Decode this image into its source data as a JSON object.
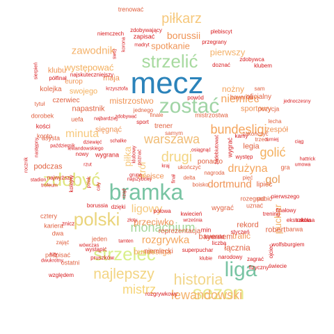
{
  "words": [
    {
      "text": "mecz",
      "color": "#2b83ba"
    },
    {
      "text": "bramka",
      "color": "#78c4a3"
    },
    {
      "text": "liga",
      "color": "#78c4a3"
    },
    {
      "text": "sezon",
      "color": "#e8e88e"
    },
    {
      "text": "zostać",
      "color": "#9fd4a4"
    },
    {
      "text": "strzelić",
      "color": "#a7da9f"
    },
    {
      "text": "strzelec",
      "color": "#d9ef8b"
    },
    {
      "text": "polski",
      "color": "#ead47b"
    },
    {
      "text": "zdobyć",
      "color": "#dfe57f"
    },
    {
      "text": "historia",
      "color": "#f2d68b"
    },
    {
      "text": "najlepszy",
      "color": "#f3d583"
    },
    {
      "text": "lewandowski",
      "color": "#f4b26a"
    },
    {
      "text": "piłkarz",
      "color": "#f6c87c"
    },
    {
      "text": "bundesligi",
      "color": "#f4a45b"
    },
    {
      "text": "warszawa",
      "color": "#f0bc75"
    },
    {
      "text": "monachium",
      "color": "#a6d79a"
    },
    {
      "text": "drugi",
      "color": "#f3d583"
    },
    {
      "text": "mistrz",
      "color": "#f6d579"
    },
    {
      "text": "gol",
      "color": "#e89c57"
    },
    {
      "text": "golić",
      "color": "#f3b05e"
    },
    {
      "text": "minuta",
      "color": "#f6c87c"
    },
    {
      "text": "dortmund",
      "color": "#ef9354"
    },
    {
      "text": "niemiec",
      "color": "#f4a45b"
    },
    {
      "text": "zawodnik",
      "color": "#f4b26a"
    },
    {
      "text": "pierwszy",
      "color": "#f4b26a"
    },
    {
      "text": "rozgrywka",
      "color": "#f4a45b"
    },
    {
      "text": "drużyna",
      "color": "#f4a45b"
    },
    {
      "text": "ligowy",
      "color": "#f6c87c"
    },
    {
      "text": "przeciwko",
      "color": "#ef9354"
    },
    {
      "text": "borussii",
      "color": "#ef9354"
    },
    {
      "text": "spotkanie",
      "color": "#ef9354"
    },
    {
      "text": "występować",
      "color": "#f3b05e"
    },
    {
      "text": "mistrzostwo",
      "color": "#ef9354"
    },
    {
      "text": "nożny",
      "color": "#f4a45b"
    },
    {
      "text": "sportowy",
      "color": "#ef9354"
    },
    {
      "text": "klubu",
      "color": "#ef9354"
    },
    {
      "text": "maja",
      "color": "#ef9354"
    },
    {
      "text": "europ",
      "color": "#ef9354"
    },
    {
      "text": "swojego",
      "color": "#f3b05e"
    },
    {
      "text": "czerwiec",
      "color": "#e0603f"
    },
    {
      "text": "napastnik",
      "color": "#e0603f"
    },
    {
      "text": "sięgnąć",
      "color": "#ef9354"
    },
    {
      "text": "zespół",
      "color": "#ef9354"
    },
    {
      "text": "miejsce",
      "color": "#ef9354"
    },
    {
      "text": "bundesliga",
      "color": "#f4a45b"
    },
    {
      "text": "puchar",
      "color": "#f4b26a"
    },
    {
      "text": "piłka",
      "color": "#f6c87c"
    },
    {
      "text": "król",
      "color": "#f6c87c"
    },
    {
      "text": "łącznia",
      "color": "#e0603f"
    },
    {
      "text": "trafić",
      "color": "#ef9354"
    },
    {
      "text": "rekord",
      "color": "#e0603f"
    },
    {
      "text": "robert",
      "color": "#e0603f"
    },
    {
      "text": "bayernem",
      "color": "#e0603f"
    },
    {
      "text": "niemiecki",
      "color": "#e0603f"
    },
    {
      "text": "podczas",
      "color": "#e0603f"
    },
    {
      "text": "lipiec",
      "color": "#e0603f"
    },
    {
      "text": "ponadto",
      "color": "#e0603f"
    },
    {
      "text": "legia",
      "color": "#e0603f"
    },
    {
      "text": "wygrać",
      "color": "#e0603f"
    },
    {
      "text": "rozegrać",
      "color": "#e0603f"
    },
    {
      "text": "pobić",
      "color": "#e0603f"
    },
    {
      "text": "uznać",
      "color": "#e0603f"
    },
    {
      "text": "barwa",
      "color": "#e0603f"
    },
    {
      "text": "jeden",
      "color": "#e0603f"
    },
    {
      "text": "reprezentacja",
      "color": "#e0603f"
    },
    {
      "text": "dwa",
      "color": "#e0603f"
    },
    {
      "text": "kariera",
      "color": "#e0603f"
    },
    {
      "text": "cztery",
      "color": "#e0603f"
    },
    {
      "text": "podpisać",
      "color": "#e0603f"
    },
    {
      "text": "ostatni",
      "color": "#e0603f"
    },
    {
      "text": "zająć",
      "color": "#e0603f"
    },
    {
      "text": "trener",
      "color": "#e0603f"
    },
    {
      "text": "oficjalny",
      "color": "#e0603f"
    },
    {
      "text": "bayernu",
      "color": "#e0603f"
    },
    {
      "text": "sam",
      "color": "#e0603f"
    },
    {
      "text": "pozycja",
      "color": "#e0603f"
    },
    {
      "text": "kolejka",
      "color": "#e0603f"
    },
    {
      "text": "dorobek",
      "color": "#e0603f"
    },
    {
      "text": "tytuł",
      "color": "#e0603f"
    },
    {
      "text": "konto",
      "color": "#e0603f"
    },
    {
      "text": "asysta",
      "color": "#e0603f"
    },
    {
      "text": "uefa",
      "color": "#e0603f"
    },
    {
      "text": "jednego",
      "color": "#e0603f"
    },
    {
      "text": "samym",
      "color": "#e0603f"
    },
    {
      "text": "mistrzostwa",
      "color": "#e0603f"
    },
    {
      "text": "finale",
      "color": "#e0603f"
    },
    {
      "text": "zakończyć",
      "color": "#e0603f"
    },
    {
      "text": "trzeci",
      "color": "#e0603f"
    },
    {
      "text": "lecha",
      "color": "#e0603f"
    },
    {
      "text": "ukończyć",
      "color": "#e0603f"
    },
    {
      "text": "nagroda",
      "color": "#e0603f"
    },
    {
      "text": "delta",
      "color": "#e0603f"
    },
    {
      "text": "boisko",
      "color": "#e0603f"
    },
    {
      "text": "gra",
      "color": "#e0603f"
    },
    {
      "text": "pięć",
      "color": "#e0603f"
    },
    {
      "text": "trenować",
      "color": "#e0603f"
    },
    {
      "text": "zdobywający",
      "color": "#d7191c"
    },
    {
      "text": "niemczech",
      "color": "#d7191c"
    },
    {
      "text": "zapisać",
      "color": "#d7191c"
    },
    {
      "text": "plebiscyt",
      "color": "#d7191c"
    },
    {
      "text": "przegrany",
      "color": "#d7191c"
    },
    {
      "text": "madryt",
      "color": "#d7191c"
    },
    {
      "text": "zdobywca",
      "color": "#d7191c"
    },
    {
      "text": "doznać",
      "color": "#d7191c"
    },
    {
      "text": "klubem",
      "color": "#d7191c"
    },
    {
      "text": "najskuteczniejszy",
      "color": "#d7191c"
    },
    {
      "text": "półfinał",
      "color": "#d7191c"
    },
    {
      "text": "krzysztofa",
      "color": "#d7191c"
    },
    {
      "text": "zdobywać",
      "color": "#d7191c"
    },
    {
      "text": "powód",
      "color": "#d7191c"
    },
    {
      "text": "jednoczesny",
      "color": "#d7191c"
    },
    {
      "text": "finałowy",
      "color": "#d7191c"
    },
    {
      "text": "sport",
      "color": "#d7191c"
    },
    {
      "text": "najbardziej",
      "color": "#d7191c"
    },
    {
      "text": "kości",
      "color": "#d7191c"
    },
    {
      "text": "październik",
      "color": "#d7191c"
    },
    {
      "text": "dziewięć",
      "color": "#d7191c"
    },
    {
      "text": "lewandowskiego",
      "color": "#d7191c"
    },
    {
      "text": "schalke",
      "color": "#d7191c"
    },
    {
      "text": "nowy",
      "color": "#d7191c"
    },
    {
      "text": "wygrana",
      "color": "#d7191c"
    },
    {
      "text": "rzut",
      "color": "#d7191c"
    },
    {
      "text": "najwyższy",
      "color": "#d7191c"
    },
    {
      "text": "polak",
      "color": "#d7191c"
    },
    {
      "text": "kamy",
      "color": "#d7191c"
    },
    {
      "text": "turniej",
      "color": "#d7191c"
    },
    {
      "text": "ciąg",
      "color": "#d7191c"
    },
    {
      "text": "osiągnąć",
      "color": "#d7191c"
    },
    {
      "text": "występ",
      "color": "#d7191c"
    },
    {
      "text": "hattrick",
      "color": "#d7191c"
    },
    {
      "text": "umowa",
      "color": "#d7191c"
    },
    {
      "text": "rocznik",
      "color": "#d7191c"
    },
    {
      "text": "stadion",
      "color": "#d7191c"
    },
    {
      "text": "trofeum",
      "color": "#d7191c"
    },
    {
      "text": "najszybciej",
      "color": "#d7191c"
    },
    {
      "text": "kraj",
      "color": "#d7191c"
    },
    {
      "text": "grupa",
      "color": "#d7191c"
    },
    {
      "text": "pierwszego",
      "color": "#d7191c"
    },
    {
      "text": "szkoła",
      "color": "#d7191c"
    },
    {
      "text": "ekstraklasa",
      "color": "#d7191c"
    },
    {
      "text": "trening",
      "color": "#d7191c"
    },
    {
      "text": "kwiecień",
      "color": "#d7191c"
    },
    {
      "text": "września",
      "color": "#d7191c"
    },
    {
      "text": "połowa",
      "color": "#d7191c"
    },
    {
      "text": "borussia",
      "color": "#d7191c"
    },
    {
      "text": "dzięki",
      "color": "#d7191c"
    },
    {
      "text": "znicz",
      "color": "#d7191c"
    },
    {
      "text": "złoty",
      "color": "#d7191c"
    },
    {
      "text": "min",
      "color": "#d7191c"
    },
    {
      "text": "styczeń",
      "color": "#d7191c"
    },
    {
      "text": "kontrakt",
      "color": "#d7191c"
    },
    {
      "text": "liczba",
      "color": "#d7191c"
    },
    {
      "text": "wolfsburgiem",
      "color": "#d7191c"
    },
    {
      "text": "superpuchar",
      "color": "#d7191c"
    },
    {
      "text": "narodowy",
      "color": "#d7191c"
    },
    {
      "text": "zagrać",
      "color": "#d7191c"
    },
    {
      "text": "klubie",
      "color": "#d7191c"
    },
    {
      "text": "fizyczny",
      "color": "#d7191c"
    },
    {
      "text": "świecie",
      "color": "#d7191c"
    },
    {
      "text": "pruszków",
      "color": "#d7191c"
    },
    {
      "text": "wystąpić",
      "color": "#d7191c"
    },
    {
      "text": "wówczas",
      "color": "#d7191c"
    },
    {
      "text": "tamten",
      "color": "#d7191c"
    },
    {
      "text": "trzy",
      "color": "#d7191c"
    },
    {
      "text": "dwukrotny",
      "color": "#d7191c"
    },
    {
      "text": "względem",
      "color": "#d7191c"
    },
    {
      "text": "rozgrywkowy",
      "color": "#d7191c"
    },
    {
      "text": "sierpień",
      "color": "#d7191c"
    },
    {
      "text": "następny",
      "color": "#d7191c"
    },
    {
      "text": "swoj",
      "color": "#d7191c"
    },
    {
      "text": "kolejny",
      "color": "#d7191c"
    },
    {
      "text": "klubowy",
      "color": "#d7191c"
    },
    {
      "text": "poznać",
      "color": "#d7191c"
    },
    {
      "text": "rząd",
      "color": "#d7191c"
    },
    {
      "text": "cały",
      "color": "#d7191c"
    },
    {
      "text": "finał",
      "color": "#d7191c"
    },
    {
      "text": "ojciec",
      "color": "#d7191c"
    },
    {
      "text": "zadebiutować",
      "color": "#d7191c"
    },
    {
      "text": "wygrać",
      "color": "#d7191c"
    },
    {
      "text": "korona",
      "color": "#d7191c"
    },
    {
      "text": "borussia",
      "color": "#d7191c"
    }
  ]
}
